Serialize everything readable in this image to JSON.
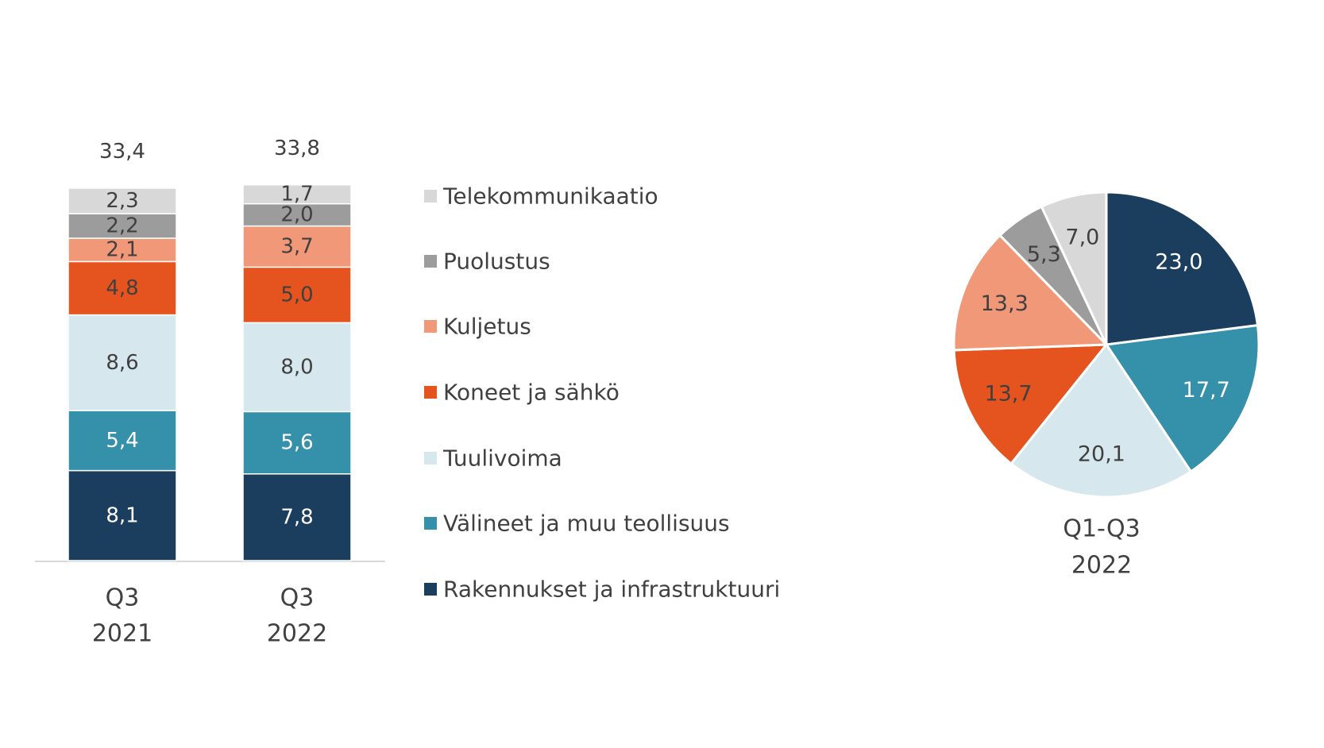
{
  "chart_data": [
    {
      "type": "bar",
      "stacked": true,
      "categories": [
        [
          "Q3",
          "2021"
        ],
        [
          "Q3",
          "2022"
        ]
      ],
      "totals": [
        "33,4",
        "33,8"
      ],
      "series": [
        {
          "name": "Rakennukset ja infrastruktuuri",
          "color": "#1c3e5e",
          "values": [
            8.1,
            7.8
          ],
          "labels": [
            "8,1",
            "7,8"
          ],
          "label_color": "#ffffff"
        },
        {
          "name": "Välineet ja muu teollisuus",
          "color": "#3590aa",
          "values": [
            5.4,
            5.6
          ],
          "labels": [
            "5,4",
            "5,6"
          ],
          "label_color": "#ffffff"
        },
        {
          "name": "Tuulivoima",
          "color": "#d6e8ee",
          "values": [
            8.6,
            8.0
          ],
          "labels": [
            "8,6",
            "8,0"
          ],
          "label_color": "#404040"
        },
        {
          "name": "Koneet ja sähkö",
          "color": "#e5541f",
          "values": [
            4.8,
            5.0
          ],
          "labels": [
            "4,8",
            "5,0"
          ],
          "label_color": "#404040"
        },
        {
          "name": "Kuljetus",
          "color": "#f09878",
          "values": [
            2.1,
            3.7
          ],
          "labels": [
            "2,1",
            "3,7"
          ],
          "label_color": "#404040"
        },
        {
          "name": "Puolustus",
          "color": "#9c9c9c",
          "values": [
            2.2,
            2.0
          ],
          "labels": [
            "2,2",
            "2,0"
          ],
          "label_color": "#404040"
        },
        {
          "name": "Telekommunikaatio",
          "color": "#d8d8d8",
          "values": [
            2.3,
            1.7
          ],
          "labels": [
            "2,3",
            "1,7"
          ],
          "label_color": "#404040"
        }
      ],
      "legend": [
        "Telekommunikaatio",
        "Puolustus",
        "Kuljetus",
        "Koneet ja sähkö",
        "Tuulivoima",
        "Välineet ja muu teollisuus",
        "Rakennukset ja infrastruktuuri"
      ],
      "legend_position": "right"
    },
    {
      "type": "pie",
      "caption": [
        "Q1-Q3",
        "2022"
      ],
      "slices": [
        {
          "name": "Rakennukset ja infrastruktuuri",
          "value": 23.0,
          "label": "23,0",
          "color": "#1c3e5e",
          "label_color": "#ffffff"
        },
        {
          "name": "Välineet ja muu teollisuus",
          "value": 17.7,
          "label": "17,7",
          "color": "#3590aa",
          "label_color": "#ffffff"
        },
        {
          "name": "Tuulivoima",
          "value": 20.1,
          "label": "20,1",
          "color": "#d6e8ee",
          "label_color": "#404040"
        },
        {
          "name": "Koneet ja sähkö",
          "value": 13.7,
          "label": "13,7",
          "color": "#e5541f",
          "label_color": "#404040"
        },
        {
          "name": "Kuljetus",
          "value": 13.3,
          "label": "13,3",
          "color": "#f09878",
          "label_color": "#404040"
        },
        {
          "name": "Puolustus",
          "value": 5.3,
          "label": "5,3",
          "color": "#9c9c9c",
          "label_color": "#404040"
        },
        {
          "name": "Telekommunikaatio",
          "value": 7.0,
          "label": "7,0",
          "color": "#d8d8d8",
          "label_color": "#404040"
        }
      ]
    }
  ]
}
